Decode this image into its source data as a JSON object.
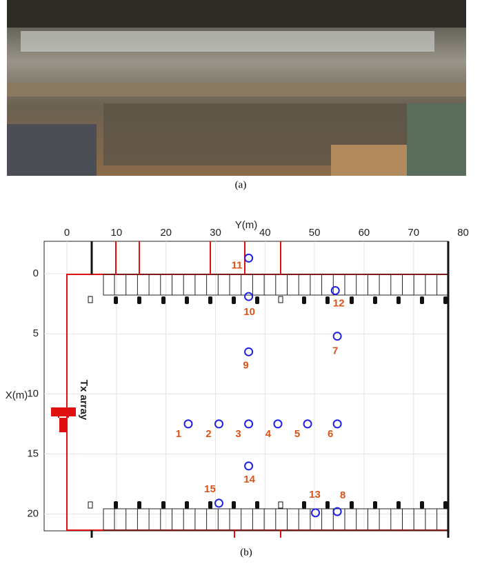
{
  "caption_a": "(a)",
  "chart_data": {
    "type": "scatter",
    "caption": "(b)",
    "x_label": "Y(m)",
    "y_label": "X(m)",
    "annotation": "Tx array",
    "xlim": [
      -4.6,
      77
    ],
    "ylim": [
      -2.7,
      21.4
    ],
    "y_inverted": true,
    "x_axis_position": "top",
    "xticks": [
      0,
      10,
      20,
      30,
      40,
      50,
      60,
      70,
      80
    ],
    "yticks": [
      0,
      5,
      10,
      15,
      20
    ],
    "grid": true,
    "series": [
      {
        "color": "#1f1fe6",
        "label_color": "#d95319",
        "labels": [
          "1",
          "2",
          "3",
          "4",
          "5",
          "6",
          "7",
          "8",
          "9",
          "10",
          "11",
          "12",
          "13",
          "14",
          "15"
        ],
        "x": [
          24.5,
          30.7,
          36.7,
          42.6,
          48.6,
          54.6,
          54.6,
          54.6,
          36.7,
          36.7,
          36.7,
          54.2,
          50.2,
          36.7,
          30.7
        ],
        "y": [
          12.5,
          12.5,
          12.5,
          12.5,
          12.5,
          12.5,
          5.2,
          19.8,
          6.5,
          1.9,
          -1.3,
          1.4,
          19.9,
          16.0,
          19.1
        ]
      }
    ]
  }
}
